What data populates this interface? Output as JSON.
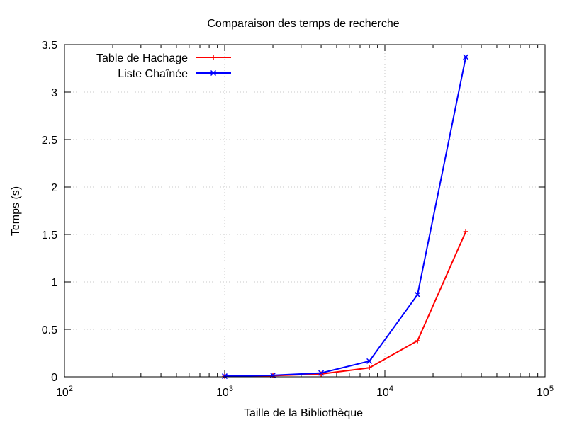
{
  "chart_data": {
    "type": "line",
    "title": "Comparaison des temps de recherche",
    "xlabel": "Taille de la Bibliothèque",
    "ylabel": "Temps (s)",
    "x_scale": "log",
    "xlim": [
      100,
      100000
    ],
    "ylim": [
      0,
      3.5
    ],
    "grid": true,
    "legend_position": "top-left",
    "x_ticks": [
      {
        "value": 100,
        "base": "10",
        "exp": "2"
      },
      {
        "value": 1000,
        "base": "10",
        "exp": "3"
      },
      {
        "value": 10000,
        "base": "10",
        "exp": "4"
      },
      {
        "value": 100000,
        "base": "10",
        "exp": "5"
      }
    ],
    "y_ticks": [
      {
        "value": 0,
        "label": "0"
      },
      {
        "value": 0.5,
        "label": "0.5"
      },
      {
        "value": 1,
        "label": "1"
      },
      {
        "value": 1.5,
        "label": "1.5"
      },
      {
        "value": 2,
        "label": "2"
      },
      {
        "value": 2.5,
        "label": "2.5"
      },
      {
        "value": 3,
        "label": "3"
      },
      {
        "value": 3.5,
        "label": "3.5"
      }
    ],
    "series": [
      {
        "name": "Table de Hachage",
        "color": "#ff0000",
        "marker": "plus",
        "x": [
          1000,
          2000,
          4000,
          8000,
          16000,
          32000
        ],
        "y": [
          0.005,
          0.012,
          0.03,
          0.095,
          0.38,
          1.53
        ]
      },
      {
        "name": "Liste Chaînée",
        "color": "#0000ff",
        "marker": "cross",
        "x": [
          1000,
          2000,
          4000,
          8000,
          16000,
          32000
        ],
        "y": [
          0.007,
          0.016,
          0.04,
          0.165,
          0.865,
          3.37
        ]
      }
    ]
  }
}
